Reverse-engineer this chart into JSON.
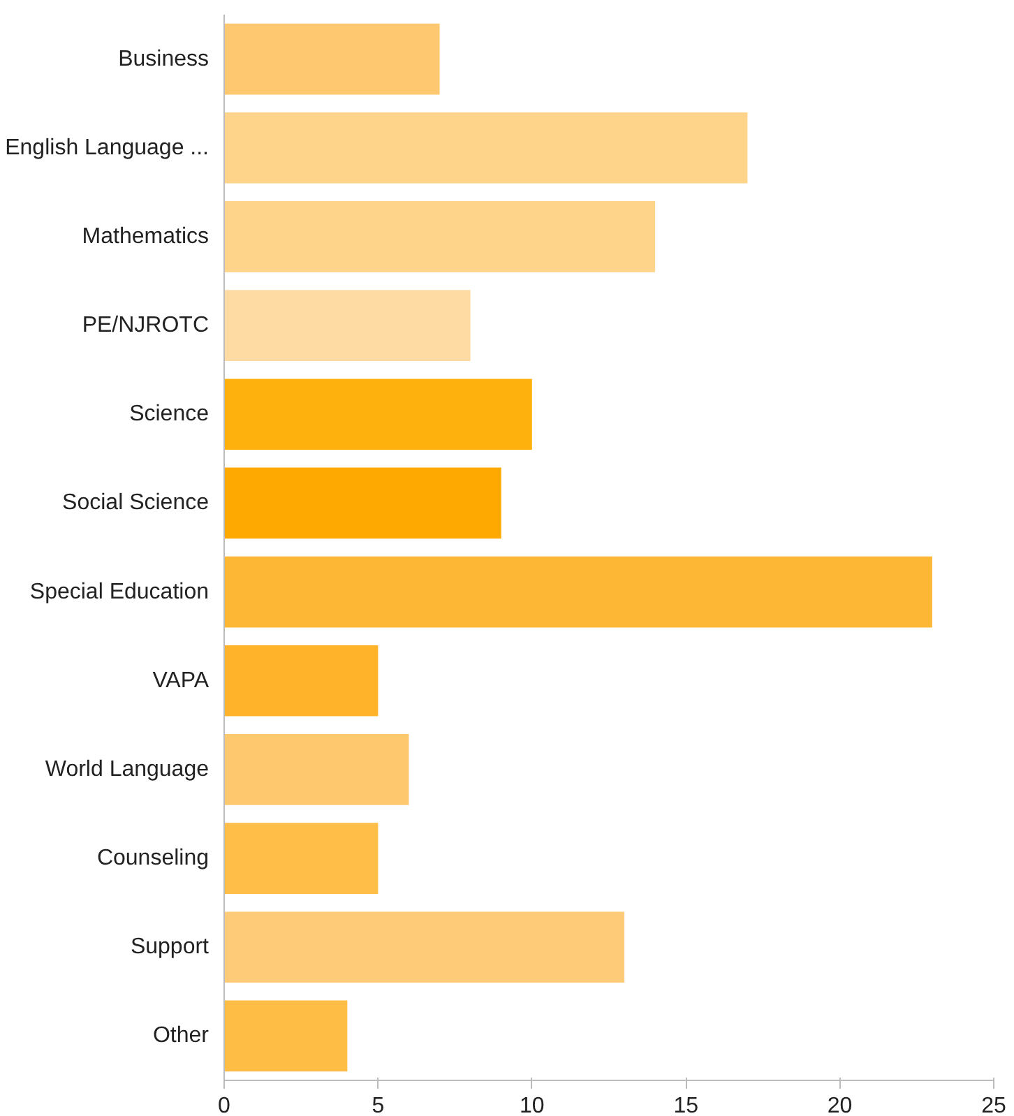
{
  "chart_data": {
    "type": "bar",
    "orientation": "horizontal",
    "categories": [
      "Business",
      "English Language ...",
      "Mathematics",
      "PE/NJROTC",
      "Science",
      "Social Science",
      "Special Education",
      "VAPA",
      "World Language",
      "Counseling",
      "Support",
      "Other"
    ],
    "values": [
      7,
      17,
      14,
      8,
      10,
      9,
      23,
      5,
      6,
      5,
      13,
      4
    ],
    "colors": [
      "#fdc86f",
      "#fed38a",
      "#fed38a",
      "#fedba3",
      "#feb00c",
      "#fea902",
      "#feb734",
      "#feb32a",
      "#fec86f",
      "#febe48",
      "#fecb78",
      "#febd44"
    ],
    "xlim": [
      0,
      25
    ],
    "xticks": [
      0,
      5,
      10,
      15,
      20,
      25
    ],
    "grid": false
  }
}
